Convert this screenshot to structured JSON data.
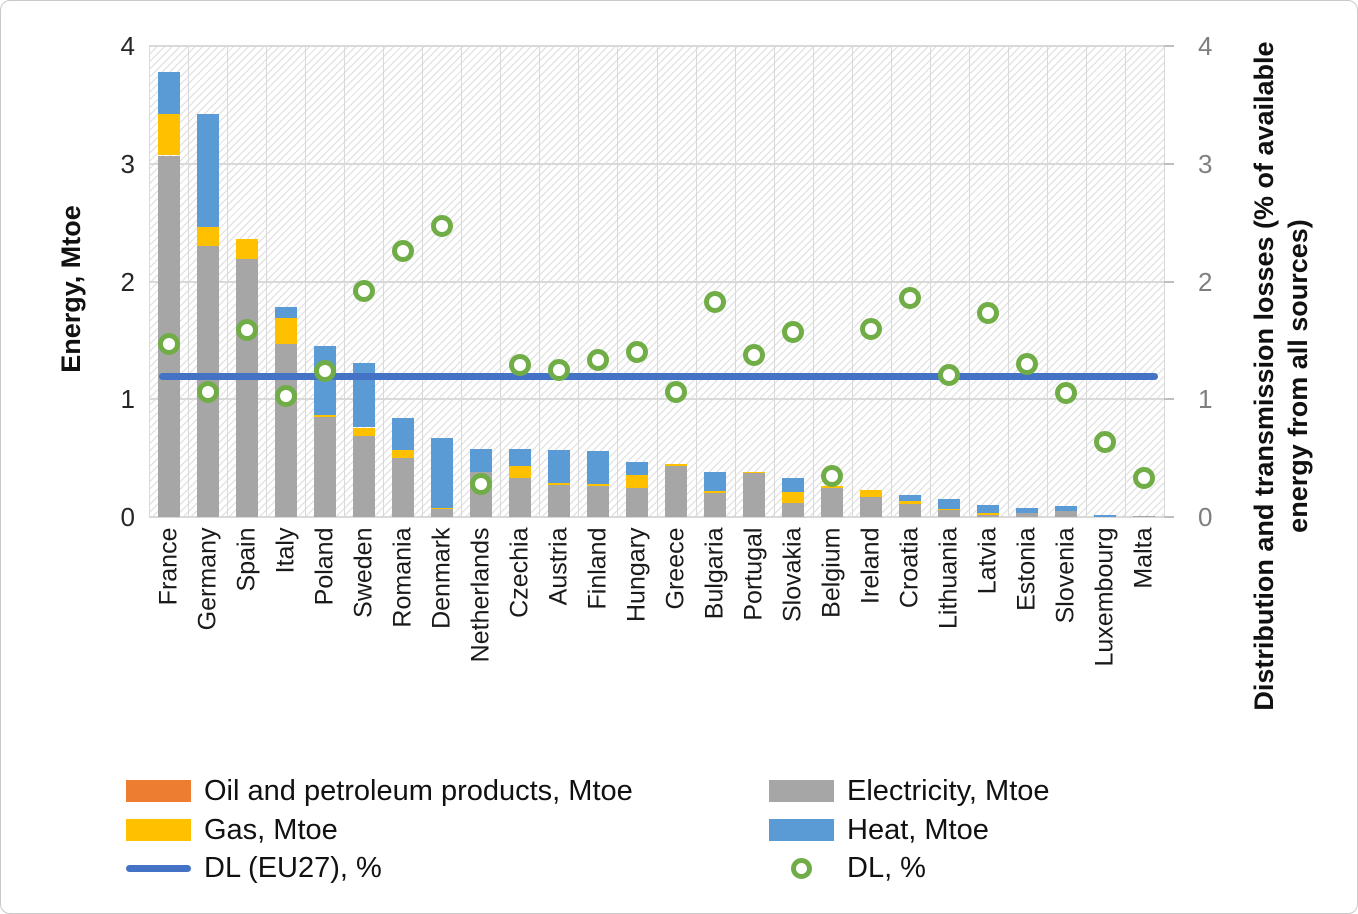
{
  "chart_data": {
    "type": "combo-stacked-bar-scatter-line",
    "title": "",
    "categories": [
      "France",
      "Germany",
      "Spain",
      "Italy",
      "Poland",
      "Sweden",
      "Romania",
      "Denmark",
      "Netherlands",
      "Czechia",
      "Austria",
      "Finland",
      "Hungary",
      "Greece",
      "Bulgaria",
      "Portugal",
      "Slovakia",
      "Belgium",
      "Ireland",
      "Croatia",
      "Lithuania",
      "Latvia",
      "Estonia",
      "Slovenia",
      "Luxembourg",
      "Malta"
    ],
    "bar_series": [
      {
        "name": "Electricity, Mtoe",
        "color": "#a6a6a6",
        "values": [
          3.07,
          2.3,
          2.19,
          1.47,
          0.85,
          0.69,
          0.5,
          0.07,
          0.38,
          0.33,
          0.27,
          0.26,
          0.25,
          0.43,
          0.2,
          0.37,
          0.12,
          0.25,
          0.17,
          0.11,
          0.06,
          0.02,
          0.03,
          0.05,
          0.0,
          0.01
        ]
      },
      {
        "name": "Oil and petroleum products, Mtoe",
        "color": "#ed7d31",
        "values": [
          0,
          0,
          0,
          0,
          0,
          0,
          0,
          0,
          0,
          0,
          0,
          0,
          0,
          0,
          0,
          0,
          0,
          0,
          0,
          0,
          0,
          0,
          0,
          0,
          0,
          0
        ]
      },
      {
        "name": "Gas, Mtoe",
        "color": "#ffc000",
        "values": [
          0.35,
          0.16,
          0.17,
          0.22,
          0.02,
          0.07,
          0.07,
          0.01,
          0.0,
          0.1,
          0.02,
          0.02,
          0.11,
          0.02,
          0.02,
          0.01,
          0.09,
          0.01,
          0.06,
          0.03,
          0.01,
          0.01,
          0.0,
          0.0,
          0.0,
          0.0
        ]
      },
      {
        "name": "Heat, Mtoe",
        "color": "#5b9bd5",
        "values": [
          0.36,
          0.96,
          0.0,
          0.09,
          0.58,
          0.55,
          0.27,
          0.59,
          0.2,
          0.15,
          0.28,
          0.28,
          0.11,
          0.0,
          0.16,
          0.0,
          0.12,
          0.0,
          0.0,
          0.05,
          0.08,
          0.07,
          0.05,
          0.04,
          0.02,
          0.0
        ]
      }
    ],
    "scatter_series": {
      "name": "DL, %",
      "marker": "open-circle",
      "color": "#70ad47",
      "values": [
        1.47,
        1.06,
        1.59,
        1.03,
        1.24,
        1.92,
        2.26,
        2.47,
        0.28,
        1.29,
        1.25,
        1.33,
        1.4,
        1.06,
        1.83,
        1.38,
        1.57,
        0.35,
        1.6,
        1.86,
        1.21,
        1.73,
        1.3,
        1.05,
        0.64,
        0.33
      ]
    },
    "line_series": {
      "name": "DL (EU27), %",
      "color": "#4472c4",
      "value": 1.19
    },
    "left_axis": {
      "title": "Energy, Mtoe",
      "min": 0,
      "max": 4,
      "tick_labels": [
        "0",
        "1",
        "2",
        "3",
        "4"
      ]
    },
    "right_axis": {
      "title_lines": [
        "Distribution and transmission losses (% of available",
        "energy from all sources)"
      ],
      "min": 0,
      "max": 4,
      "tick_labels": [
        "0",
        "1",
        "2",
        "3",
        "4"
      ]
    },
    "grid": {
      "horizontal_gridlines": true,
      "vertical_gridlines": true,
      "gridline_color": "#d9d9d9",
      "plot_area_hatched": true,
      "legend_position": "bottom"
    }
  },
  "legend": {
    "left_column": [
      {
        "label": "Oil and petroleum products, Mtoe",
        "swatch": "rect",
        "color": "#ed7d31"
      },
      {
        "label": "Gas, Mtoe",
        "swatch": "rect",
        "color": "#ffc000"
      },
      {
        "label": "DL (EU27), %",
        "swatch": "line",
        "color": "#4472c4"
      }
    ],
    "right_column": [
      {
        "label": "Electricity, Mtoe",
        "swatch": "rect",
        "color": "#a6a6a6"
      },
      {
        "label": "Heat, Mtoe",
        "swatch": "rect",
        "color": "#5b9bd5"
      },
      {
        "label": "DL, %",
        "swatch": "ring",
        "color": "#70ad47"
      }
    ]
  }
}
